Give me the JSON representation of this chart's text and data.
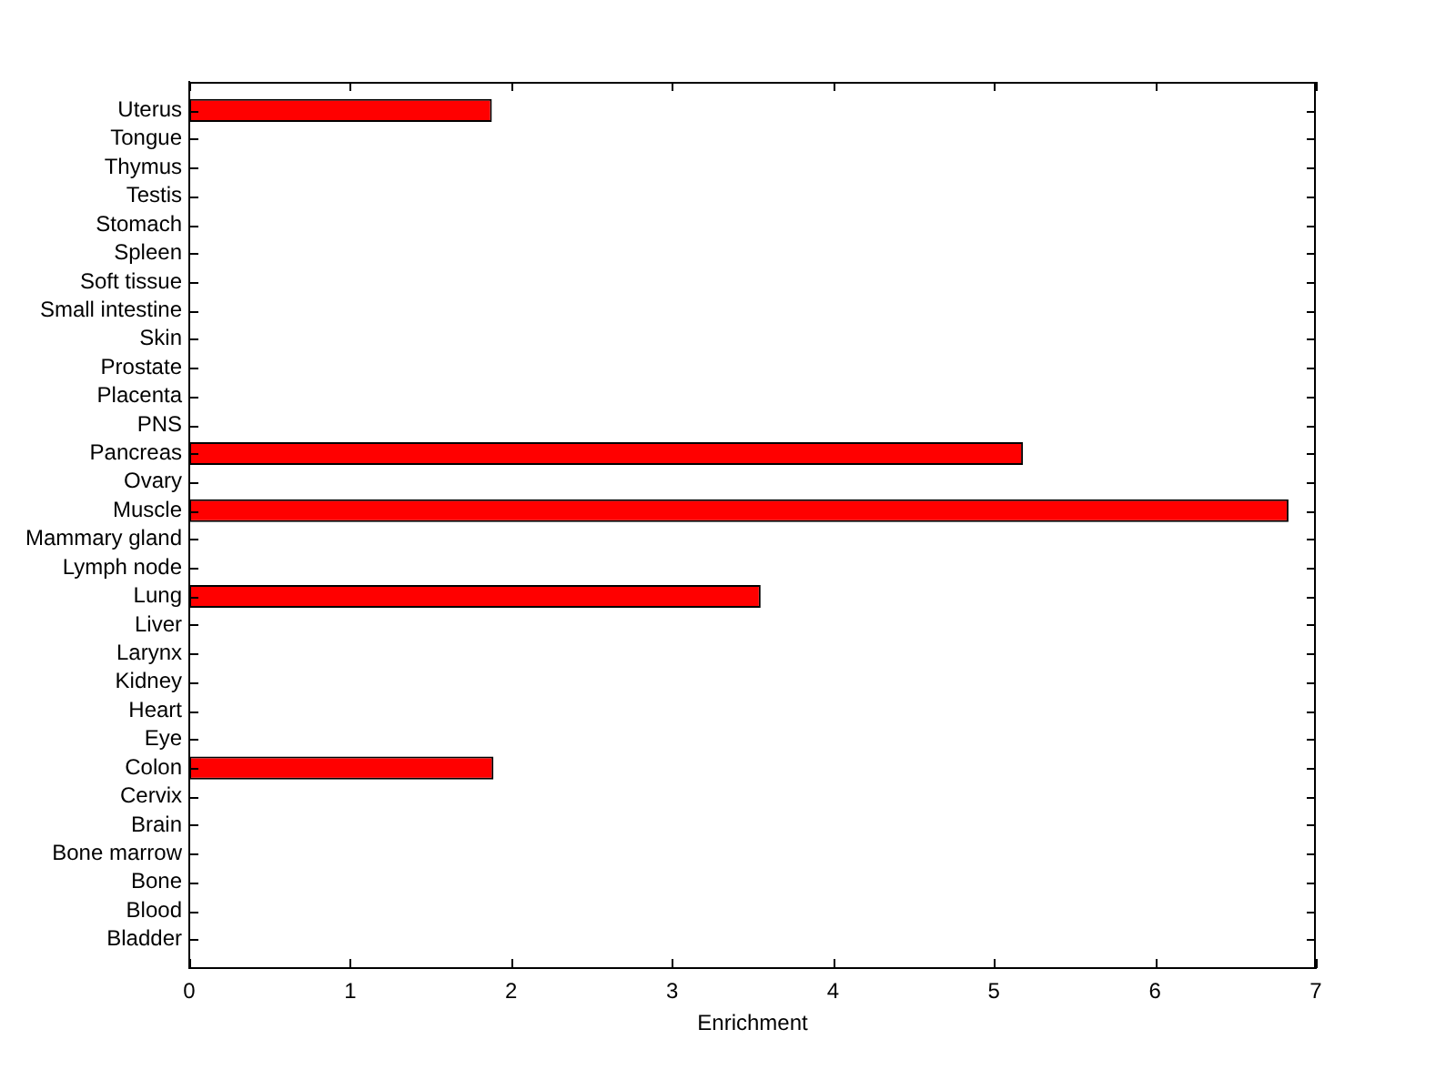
{
  "chart_data": {
    "type": "bar",
    "orientation": "horizontal",
    "xlabel": "Enrichment",
    "categories": [
      "Uterus",
      "Tongue",
      "Thymus",
      "Testis",
      "Stomach",
      "Spleen",
      "Soft tissue",
      "Small intestine",
      "Skin",
      "Prostate",
      "Placenta",
      "PNS",
      "Pancreas",
      "Ovary",
      "Muscle",
      "Mammary gland",
      "Lymph node",
      "Lung",
      "Liver",
      "Larynx",
      "Kidney",
      "Heart",
      "Eye",
      "Colon",
      "Cervix",
      "Brain",
      "Bone marrow",
      "Bone",
      "Blood",
      "Bladder"
    ],
    "values": [
      1.88,
      0,
      0,
      0,
      0,
      0,
      0,
      0,
      0,
      0,
      0,
      0,
      5.18,
      0,
      6.83,
      0,
      0,
      3.55,
      0,
      0,
      0,
      0,
      0,
      1.89,
      0,
      0,
      0,
      0,
      0,
      0
    ],
    "color": "#ff0000",
    "xlim": [
      0,
      7
    ],
    "xticks": [
      0,
      1,
      2,
      3,
      4,
      5,
      6,
      7
    ]
  }
}
